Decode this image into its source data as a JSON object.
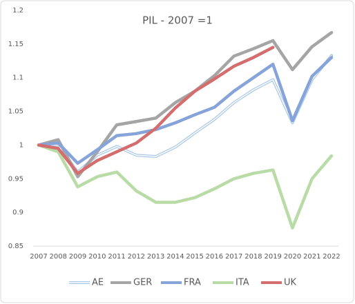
{
  "chart_data": {
    "type": "line",
    "title": "PIL - 2007 =1",
    "categories": [
      "2007",
      "2008",
      "2009",
      "2010",
      "2011",
      "2012",
      "2013",
      "2014",
      "2015",
      "2016",
      "2017",
      "2018",
      "2019",
      "2020",
      "2021",
      "2022"
    ],
    "series": [
      {
        "name": "AE",
        "color": "#a9c8e8",
        "values": [
          1.0,
          1.0,
          0.96,
          0.985,
          0.998,
          0.985,
          0.983,
          0.997,
          1.018,
          1.038,
          1.063,
          1.082,
          1.097,
          1.033,
          1.097,
          1.133
        ]
      },
      {
        "name": "GER",
        "color": "#a5a5a5",
        "values": [
          1.0,
          1.008,
          0.953,
          0.99,
          1.03,
          1.035,
          1.04,
          1.063,
          1.08,
          1.103,
          1.132,
          1.143,
          1.155,
          1.112,
          1.146,
          1.167
        ]
      },
      {
        "name": "FRA",
        "color": "#86a4d9",
        "values": [
          1.0,
          1.003,
          0.973,
          0.993,
          1.014,
          1.017,
          1.023,
          1.033,
          1.045,
          1.056,
          1.08,
          1.1,
          1.12,
          1.036,
          1.102,
          1.13
        ]
      },
      {
        "name": "ITA",
        "color": "#b9dba6",
        "values": [
          1.0,
          0.99,
          0.938,
          0.953,
          0.96,
          0.932,
          0.915,
          0.915,
          0.922,
          0.935,
          0.95,
          0.958,
          0.963,
          0.877,
          0.95,
          0.984
        ]
      },
      {
        "name": "UK",
        "color": "#d46d6d",
        "values": [
          1.0,
          0.995,
          0.958,
          0.977,
          0.99,
          1.003,
          1.025,
          1.055,
          1.08,
          1.098,
          1.117,
          1.13,
          1.145,
          null,
          null,
          null
        ]
      }
    ],
    "ylim": [
      0.85,
      1.2
    ],
    "yticks": [
      0.85,
      0.9,
      0.95,
      1,
      1.05,
      1.1,
      1.15,
      1.2
    ],
    "grid": false
  }
}
